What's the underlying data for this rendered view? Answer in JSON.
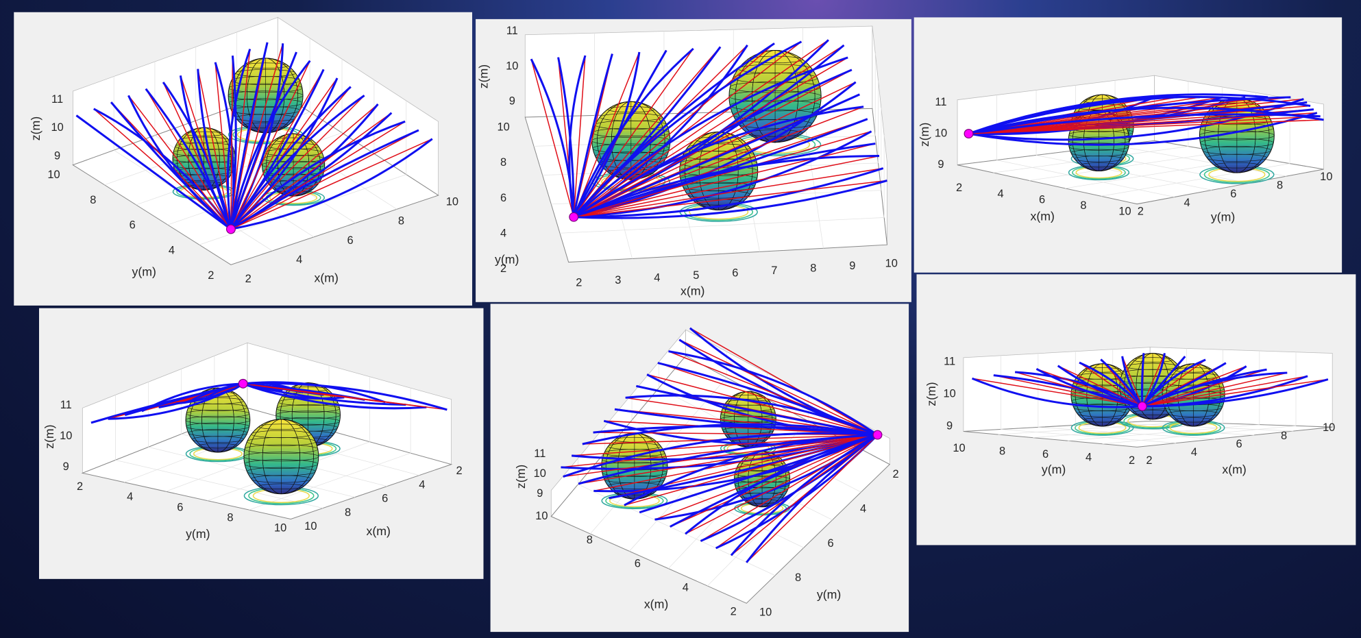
{
  "panels": [
    {
      "axes": {
        "x": {
          "label": "x(m)",
          "ticks": [
            2,
            4,
            6,
            8,
            10
          ]
        },
        "y": {
          "label": "y(m)",
          "ticks": [
            10,
            8,
            6,
            4,
            2
          ]
        },
        "z": {
          "label": "z(m)",
          "ticks": [
            9,
            10,
            11
          ]
        }
      }
    },
    {
      "axes": {
        "x": {
          "label": "x(m)",
          "ticks": [
            2,
            3,
            4,
            5,
            6,
            7,
            8,
            9,
            10
          ]
        },
        "y": {
          "label": "y(m)",
          "ticks": [
            10,
            8,
            6,
            4,
            2
          ]
        },
        "z": {
          "label": "z(m)",
          "ticks": [
            11,
            10,
            9
          ]
        }
      }
    },
    {
      "axes": {
        "x": {
          "label": "x(m)",
          "ticks": [
            2,
            4,
            6,
            8,
            10
          ]
        },
        "y": {
          "label": "y(m)",
          "ticks": [
            2,
            4,
            6,
            8,
            10
          ]
        },
        "z": {
          "label": "z(m)",
          "ticks": [
            11,
            10,
            9
          ]
        }
      }
    },
    {
      "axes": {
        "x": {
          "label": "x(m)",
          "ticks": [
            10,
            8,
            6,
            4,
            2
          ]
        },
        "y": {
          "label": "y(m)",
          "ticks": [
            2,
            4,
            6,
            8,
            10
          ]
        },
        "z": {
          "label": "z(m)",
          "ticks": [
            11,
            10,
            9
          ]
        }
      }
    },
    {
      "axes": {
        "x": {
          "label": "x(m)",
          "ticks": [
            10,
            8,
            6,
            4,
            2
          ]
        },
        "y": {
          "label": "y(m)",
          "ticks": [
            2,
            4,
            6,
            8,
            10
          ]
        },
        "z": {
          "label": "z(m)",
          "ticks": [
            11,
            10,
            9
          ]
        }
      }
    },
    {
      "axes": {
        "x": {
          "label": "x(m)",
          "ticks": [
            2,
            4,
            6,
            8,
            10
          ]
        },
        "y": {
          "label": "y(m)",
          "ticks": [
            10,
            8,
            6,
            4,
            2
          ]
        },
        "z": {
          "label": "z(m)",
          "ticks": [
            11,
            10,
            9
          ]
        }
      }
    }
  ]
}
